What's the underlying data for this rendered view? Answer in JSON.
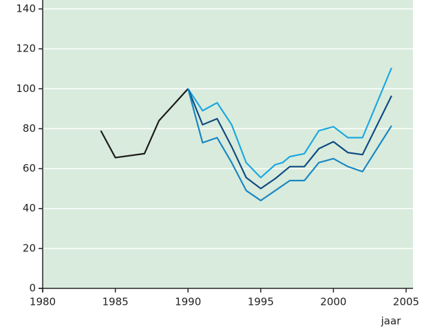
{
  "chart_data": {
    "type": "line",
    "x_label": "jaar",
    "xlim": [
      1980,
      2005
    ],
    "xticks": [
      1980,
      1985,
      1990,
      1995,
      2000,
      2005
    ],
    "ylim": [
      0,
      140
    ],
    "yticks": [
      0,
      20,
      40,
      60,
      80,
      100,
      120,
      140
    ],
    "grid": true,
    "background": "#d9ebdc",
    "series": [
      {
        "color": "#1a1a1a",
        "x": [
          1984,
          1985,
          1987,
          1988,
          1990
        ],
        "values": [
          79,
          65.5,
          67.5,
          84,
          100
        ]
      },
      {
        "color": "#1aa8e0",
        "x": [
          1990,
          1991,
          1992,
          1993,
          1994,
          1995,
          1996,
          1996.5,
          1997,
          1998,
          1999,
          2000,
          2001,
          2002,
          2004
        ],
        "values": [
          100,
          89,
          93,
          82,
          63,
          55.5,
          62,
          63,
          66,
          67.5,
          79,
          81,
          75.5,
          75.5,
          110.5
        ]
      },
      {
        "color": "#0d4a82",
        "x": [
          1990,
          1991,
          1992,
          1993,
          1994,
          1995,
          1996,
          1997,
          1998,
          1999,
          2000,
          2001,
          2002,
          2004
        ],
        "values": [
          100,
          82,
          85,
          71,
          55.5,
          50,
          55,
          61,
          61,
          70,
          73.5,
          68,
          67,
          96.5
        ]
      },
      {
        "color": "#1886c4",
        "x": [
          1990,
          1991,
          1992,
          1993,
          1994,
          1995,
          1996,
          1997,
          1998,
          1999,
          2000,
          2001,
          2002,
          2003,
          2004
        ],
        "values": [
          100,
          73,
          75.5,
          63,
          49,
          44,
          49,
          54,
          54,
          63,
          65,
          61,
          58.5,
          70,
          81.5
        ]
      }
    ]
  }
}
